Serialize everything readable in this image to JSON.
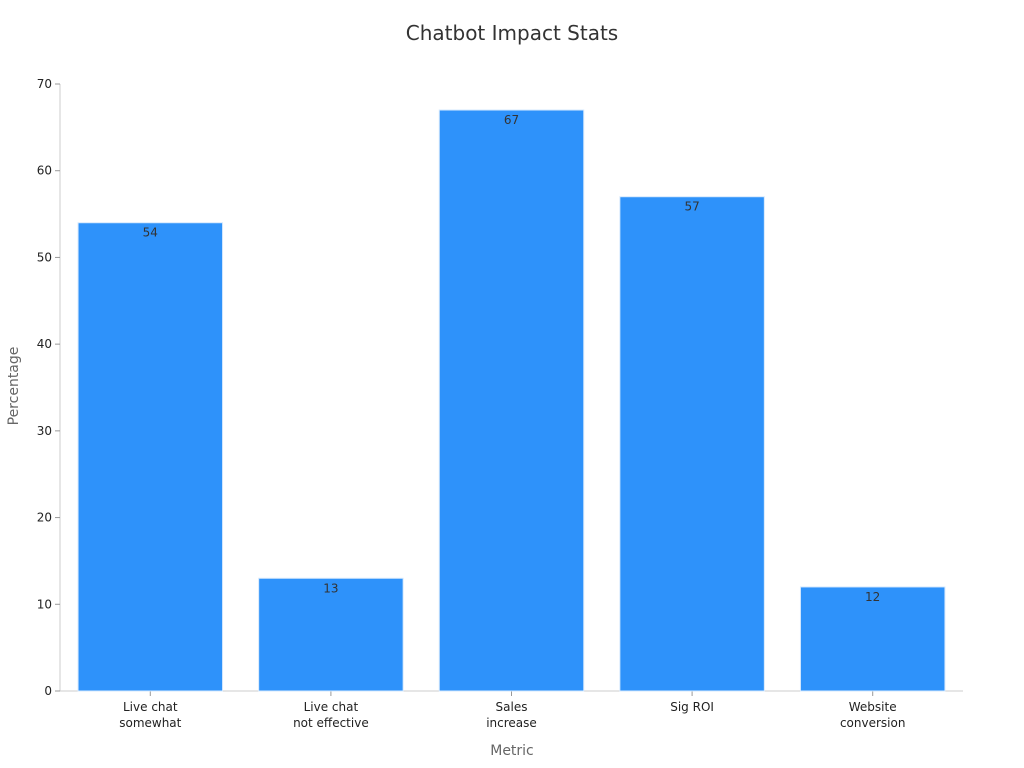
{
  "chart_data": {
    "type": "bar",
    "title": "Chatbot Impact Stats",
    "xlabel": "Metric",
    "ylabel": "Percentage",
    "categories": [
      [
        "Live chat",
        "somewhat"
      ],
      [
        "Live chat",
        "not effective"
      ],
      [
        "Sales",
        "increase"
      ],
      [
        "Sig ROI"
      ],
      [
        "Website",
        "conversion"
      ]
    ],
    "values": [
      54,
      13,
      67,
      57,
      12
    ],
    "ylim": [
      0,
      70
    ],
    "yticks": [
      0,
      10,
      20,
      30,
      40,
      50,
      60,
      70
    ],
    "grid": false,
    "bar_color": "#2e92fa",
    "bar_edge_color": "#d6e9fd"
  }
}
